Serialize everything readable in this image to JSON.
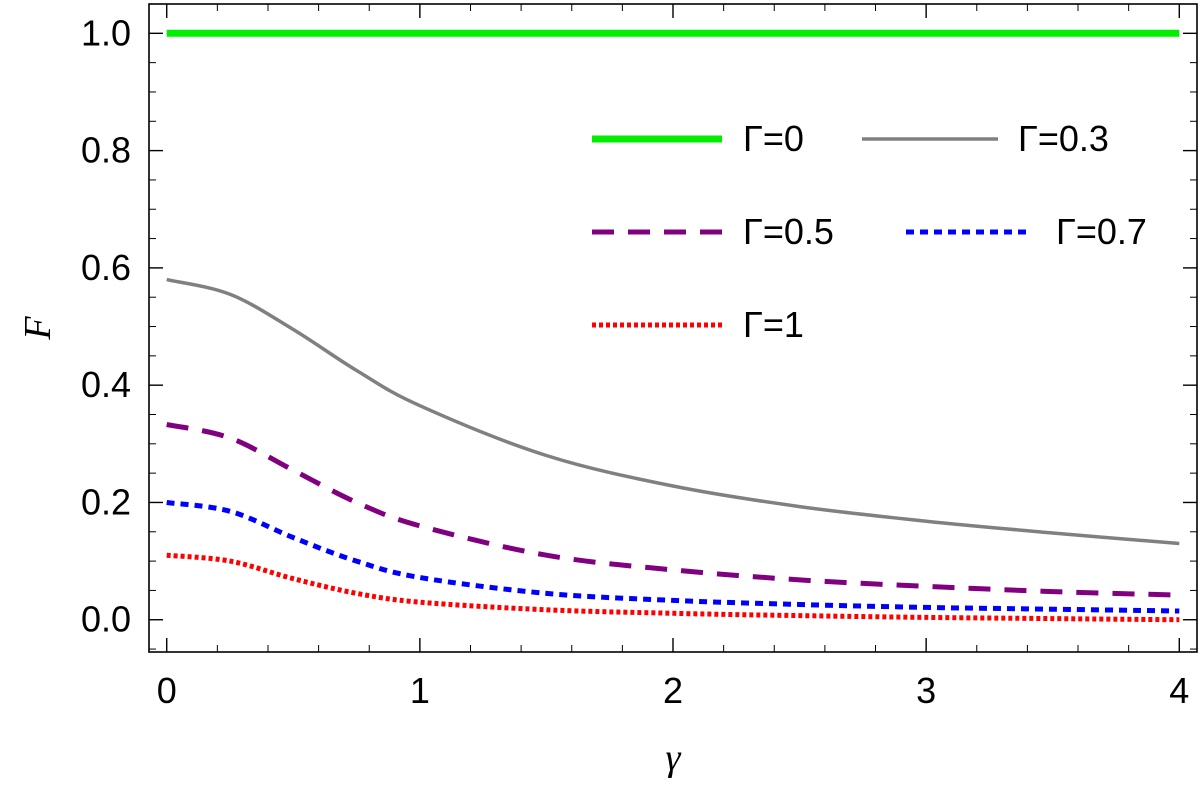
{
  "chart_data": {
    "type": "line",
    "title": "",
    "xlabel": "γ",
    "ylabel": "F",
    "xlim": [
      -0.07,
      4.07
    ],
    "ylim": [
      -0.055,
      1.05
    ],
    "grid": false,
    "legend_position": "top-right",
    "x_ticks": [
      "0",
      "1",
      "2",
      "3",
      "4"
    ],
    "y_ticks": [
      "0.0",
      "0.2",
      "0.4",
      "0.6",
      "0.8",
      "1.0"
    ],
    "x": [
      0,
      0.25,
      0.5,
      0.75,
      1,
      1.5,
      2,
      2.5,
      3,
      3.5,
      4
    ],
    "series": [
      {
        "name": "Γ=0",
        "color": "#00ee00",
        "style": "solid-thick",
        "values": [
          1.0,
          1.0,
          1.0,
          1.0,
          1.0,
          1.0,
          1.0,
          1.0,
          1.0,
          1.0,
          1.0
        ]
      },
      {
        "name": "Γ=0.3",
        "color": "#808080",
        "style": "solid",
        "values": [
          0.58,
          0.555,
          0.495,
          0.425,
          0.365,
          0.28,
          0.228,
          0.193,
          0.168,
          0.148,
          0.13
        ]
      },
      {
        "name": "Γ=0.5",
        "color": "#800080",
        "style": "dashed",
        "values": [
          0.333,
          0.31,
          0.255,
          0.2,
          0.16,
          0.11,
          0.085,
          0.068,
          0.057,
          0.048,
          0.042
        ]
      },
      {
        "name": "Γ=0.7",
        "color": "#0000ff",
        "style": "dotted",
        "values": [
          0.2,
          0.185,
          0.14,
          0.1,
          0.072,
          0.045,
          0.033,
          0.026,
          0.021,
          0.018,
          0.015
        ]
      },
      {
        "name": "Γ=1",
        "color": "#ff0000",
        "style": "dotted-fine",
        "values": [
          0.11,
          0.1,
          0.07,
          0.045,
          0.03,
          0.017,
          0.011,
          0.007,
          0.004,
          0.002,
          0.0
        ]
      }
    ]
  }
}
